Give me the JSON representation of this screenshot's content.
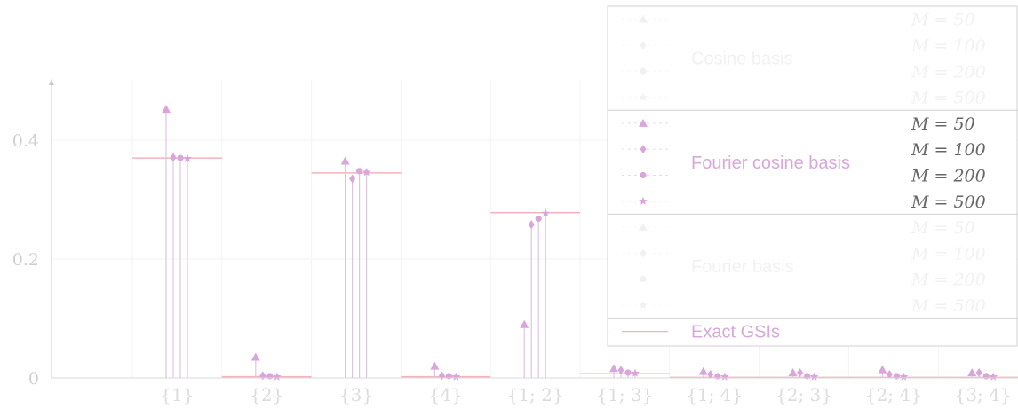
{
  "chart_data": {
    "type": "scatter",
    "categories": [
      "{1}",
      "{2}",
      "{3}",
      "{4}",
      "{1; 2}",
      "{1; 3}",
      "{1; 4}",
      "{2; 3}",
      "{2; 4}",
      "{3; 4}"
    ],
    "ylim": [
      0,
      0.5
    ],
    "yticks": [
      0,
      0.2,
      0.4
    ],
    "ytick_labels": [
      "0",
      "0.2",
      "0.4"
    ],
    "grid": true,
    "legend_position": "top-right",
    "exact": {
      "name": "Exact GSIs",
      "values": [
        0.37,
        0.002,
        0.345,
        0.002,
        0.278,
        0.007,
        0.001,
        0.001,
        0.001,
        0.001
      ]
    },
    "groups": [
      {
        "name": "Cosine basis",
        "visible": false,
        "series": [
          {
            "name": "M = 50",
            "marker": "triangle",
            "values": []
          },
          {
            "name": "M = 100",
            "marker": "diamond",
            "values": []
          },
          {
            "name": "M = 200",
            "marker": "circle",
            "values": []
          },
          {
            "name": "M = 500",
            "marker": "star",
            "values": []
          }
        ]
      },
      {
        "name": "Fourier cosine basis",
        "visible": true,
        "series": [
          {
            "name": "M = 50",
            "marker": "triangle",
            "values": [
              0.452,
              0.035,
              0.365,
              0.02,
              0.09,
              0.016,
              0.011,
              0.009,
              0.014,
              0.009
            ]
          },
          {
            "name": "M = 100",
            "marker": "diamond",
            "values": [
              0.371,
              0.004,
              0.335,
              0.004,
              0.258,
              0.013,
              0.006,
              0.009,
              0.006,
              0.009
            ]
          },
          {
            "name": "M = 200",
            "marker": "circle",
            "values": [
              0.37,
              0.003,
              0.348,
              0.003,
              0.268,
              0.009,
              0.003,
              0.003,
              0.003,
              0.003
            ]
          },
          {
            "name": "M = 500",
            "marker": "star",
            "values": [
              0.369,
              0.002,
              0.346,
              0.002,
              0.277,
              0.008,
              0.002,
              0.002,
              0.002,
              0.002
            ]
          }
        ]
      },
      {
        "name": "Fourier basis",
        "visible": false,
        "series": [
          {
            "name": "M = 50",
            "marker": "triangle",
            "values": []
          },
          {
            "name": "M = 100",
            "marker": "diamond",
            "values": []
          },
          {
            "name": "M = 200",
            "marker": "circle",
            "values": []
          },
          {
            "name": "M = 500",
            "marker": "star",
            "values": []
          }
        ]
      }
    ],
    "colors": {
      "fourier_cosine": "#d9a5dc",
      "fourier_cosine_line": "#dcc6df",
      "exact": "#f2b3bd",
      "hidden_text": "#f1f1f1",
      "axis": "#c8c8c8",
      "grid": "#f3f3f3",
      "legend_border": "#d0d0d0"
    }
  }
}
